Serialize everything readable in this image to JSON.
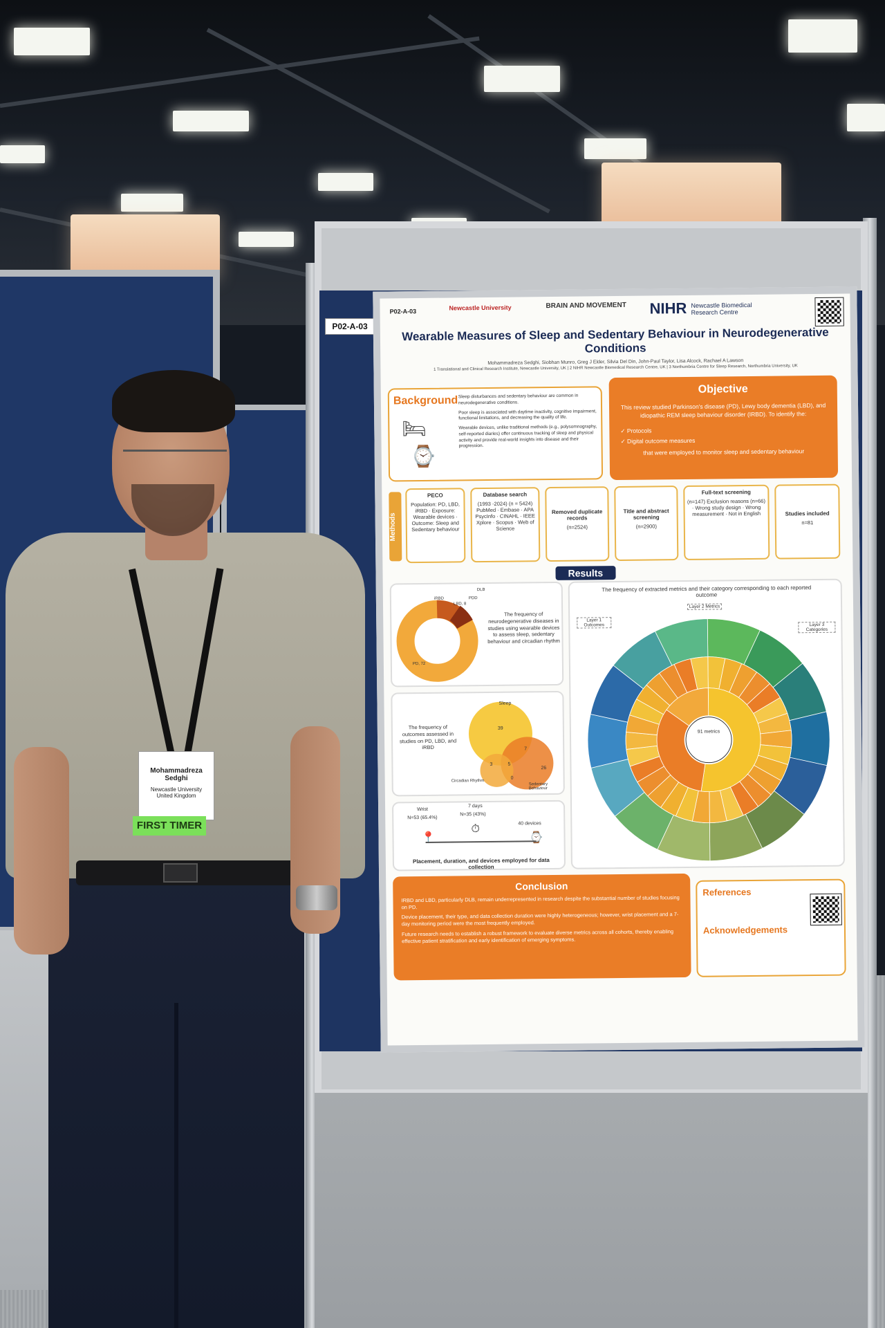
{
  "poster": {
    "board_id": "P02-A-03",
    "poster_id": "P02-A-03",
    "logos": [
      "Newcastle University",
      "BRAIN AND MOVEMENT",
      "NIHR",
      "Newcastle Biomedical Research Centre"
    ],
    "title": "Wearable Measures of Sleep and Sedentary Behaviour in Neurodegenerative Conditions",
    "authors": "Mohammadreza Sedghi, Siobhan Munro, Greg J Elder, Silvia Del Din, John-Paul Taylor, Lisa Alcock, Rachael A Lawson",
    "affiliations": "1 Translational and Clinical Research Institute, Newcastle University, UK | 2 NIHR Newcastle Biomedical Research Centre, UK | 3 Northumbria Centre for Sleep Research, Northumbria University, UK",
    "background": {
      "heading": "Background",
      "bullets": [
        "Sleep disturbances and sedentary behaviour are common in neurodegenerative conditions.",
        "Poor sleep is associated with daytime inactivity, cognitive impairment, functional limitations, and decreasing the quality of life.",
        "Wearable devices, unlike traditional methods (e.g., polysomnography, self-reported diaries) offer continuous tracking of sleep and physical activity and provide real-world insights into disease and their progression."
      ]
    },
    "objective": {
      "heading": "Objective",
      "text": "This review studied Parkinson's disease (PD), Lewy body dementia (LBD), and idiopathic REM sleep behaviour disorder (IRBD). To identify the:",
      "items": [
        "Protocols",
        "Digital outcome measures"
      ],
      "footer": "that were employed to monitor sleep and sedentary behaviour"
    },
    "methods": {
      "heading": "Methods",
      "steps": [
        {
          "title": "PECO",
          "text": "Population: PD, LBD, iRBD · Exposure: Wearable devices · Outcome: Sleep and Sedentary behaviour"
        },
        {
          "title": "Database search",
          "text": "(1993 -2024) (n = 5424) PubMed · Embase · APA PsycInfo · CINAHL · IEEE Xplore · Scopus · Web of Science"
        },
        {
          "title": "Removed duplicate records",
          "text": "(n=2524)"
        },
        {
          "title": "Title and abstract screening",
          "text": "(n=2900)"
        },
        {
          "title": "Full-text screening",
          "text": "(n=147) Exclusion reasons (n=66) · Wrong study design · Wrong measurement · Not in English"
        },
        {
          "title": "Studies included",
          "text": "n=81"
        }
      ]
    },
    "results": {
      "heading": "Results",
      "panel1": "The frequency of neurodegenerative diseases in studies using wearable devices to assess sleep, sedentary behaviour and circadian rhythm",
      "panel2": "The frequency of outcomes assessed in studies on PD, LBD, and iRBD",
      "panel3": "Placement, duration, and devices employed for data collection",
      "panel4": "The frequency of extracted metrics and their category corresponding to each reported outcome",
      "donut_labels": [
        "PD, 72",
        "iRBD",
        "LBD, 8",
        "PDD",
        "DLB"
      ],
      "venn_labels": [
        "Sleep",
        "39",
        "7",
        "3",
        "5",
        "0",
        "26",
        "Circadian Rhythm",
        "Sedentary Behaviour"
      ],
      "placement_labels": [
        "Wrist",
        "N=53 (65.4%)",
        "7 days",
        "N=35 (43%)",
        "40 devices"
      ],
      "sunburst_center": "91 metrics",
      "sunburst_layers": [
        "Layer 1 Outcomes",
        "Layer 2 Metrics",
        "Layer 3 Categories"
      ]
    },
    "conclusion": {
      "heading": "Conclusion",
      "bullets": [
        "IRBD and LBD, particularly DLB, remain underrepresented in research despite the substantial number of studies focusing on PD.",
        "Device placement, their type, and data collection duration were highly heterogeneous; however, wrist placement and a 7-day monitoring period were the most frequently employed.",
        "Future research needs to establish a robust framework to evaluate diverse metrics across all cohorts, thereby enabling effective patient stratification and early identification of emerging symptoms."
      ]
    },
    "references_heading": "References",
    "acknowledgements_heading": "Acknowledgements"
  },
  "badge": {
    "name": "Mohammadreza Sedghi",
    "org": "Newcastle University",
    "country": "United Kingdom",
    "ribbon": "FIRST TIMER"
  },
  "colors": {
    "poster_navy": "#1b2b55",
    "poster_orange": "#ea7d27",
    "board_blue": "#1f3766"
  }
}
